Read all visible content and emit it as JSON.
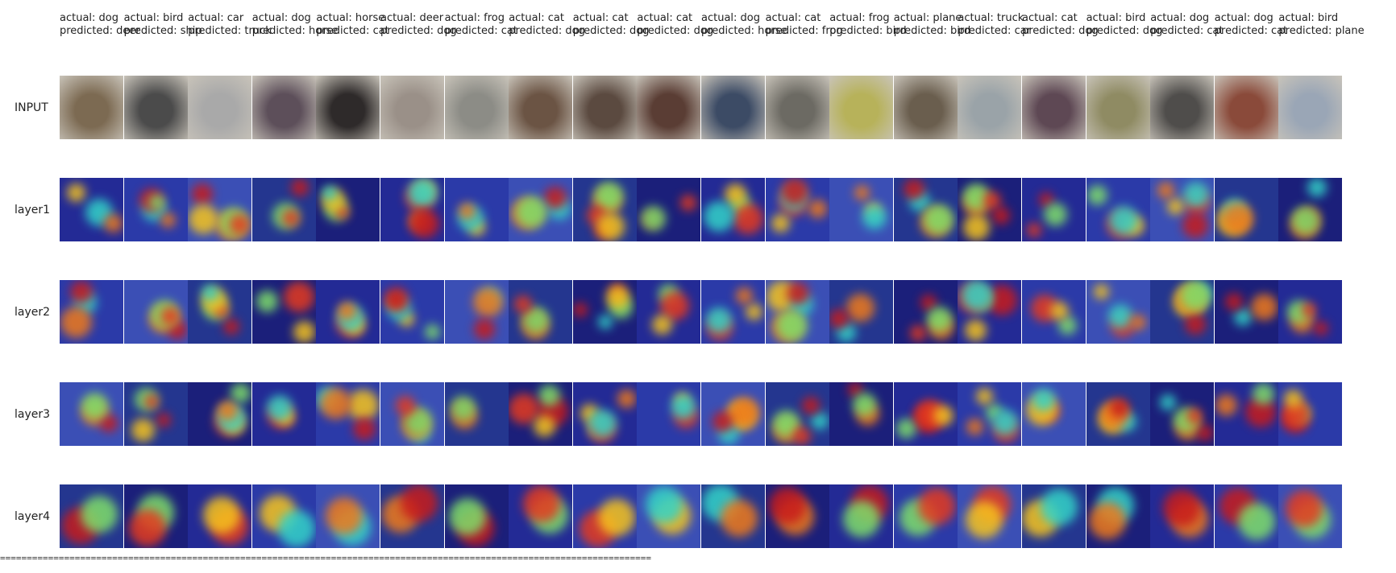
{
  "columns": [
    {
      "actual": "actual: dog",
      "predicted": "predicted: deer"
    },
    {
      "actual": "actual: bird",
      "predicted": "predicted: ship"
    },
    {
      "actual": "actual: car",
      "predicted": "predicted: truck"
    },
    {
      "actual": "actual: dog",
      "predicted": "predicted: horse"
    },
    {
      "actual": "actual: horse",
      "predicted": "predicted: cat"
    },
    {
      "actual": "actual: deer",
      "predicted": "predicted: dog"
    },
    {
      "actual": "actual: frog",
      "predicted": "predicted: cat"
    },
    {
      "actual": "actual: cat",
      "predicted": "predicted: dog"
    },
    {
      "actual": "actual: cat",
      "predicted": "predicted: dog"
    },
    {
      "actual": "actual: cat",
      "predicted": "predicted: dog"
    },
    {
      "actual": "actual: dog",
      "predicted": "predicted: horse"
    },
    {
      "actual": "actual: cat",
      "predicted": "predicted: frog"
    },
    {
      "actual": "actual: frog",
      "predicted": "predicted: bird"
    },
    {
      "actual": "actual: plane",
      "predicted": "predicted: bird"
    },
    {
      "actual": "actual: truck",
      "predicted": "predicted: car"
    },
    {
      "actual": "actual: cat",
      "predicted": "predicted: dog"
    },
    {
      "actual": "actual: bird",
      "predicted": "predicted: dog"
    },
    {
      "actual": "actual: dog",
      "predicted": "predicted: cat"
    },
    {
      "actual": "actual: dog",
      "predicted": "predicted: cat"
    },
    {
      "actual": "actual: bird",
      "predicted": "predicted: plane"
    }
  ],
  "rows": [
    "INPUT",
    "layer1",
    "layer2",
    "layer3",
    "layer4"
  ],
  "separator": "=========================================================================================================================="
}
